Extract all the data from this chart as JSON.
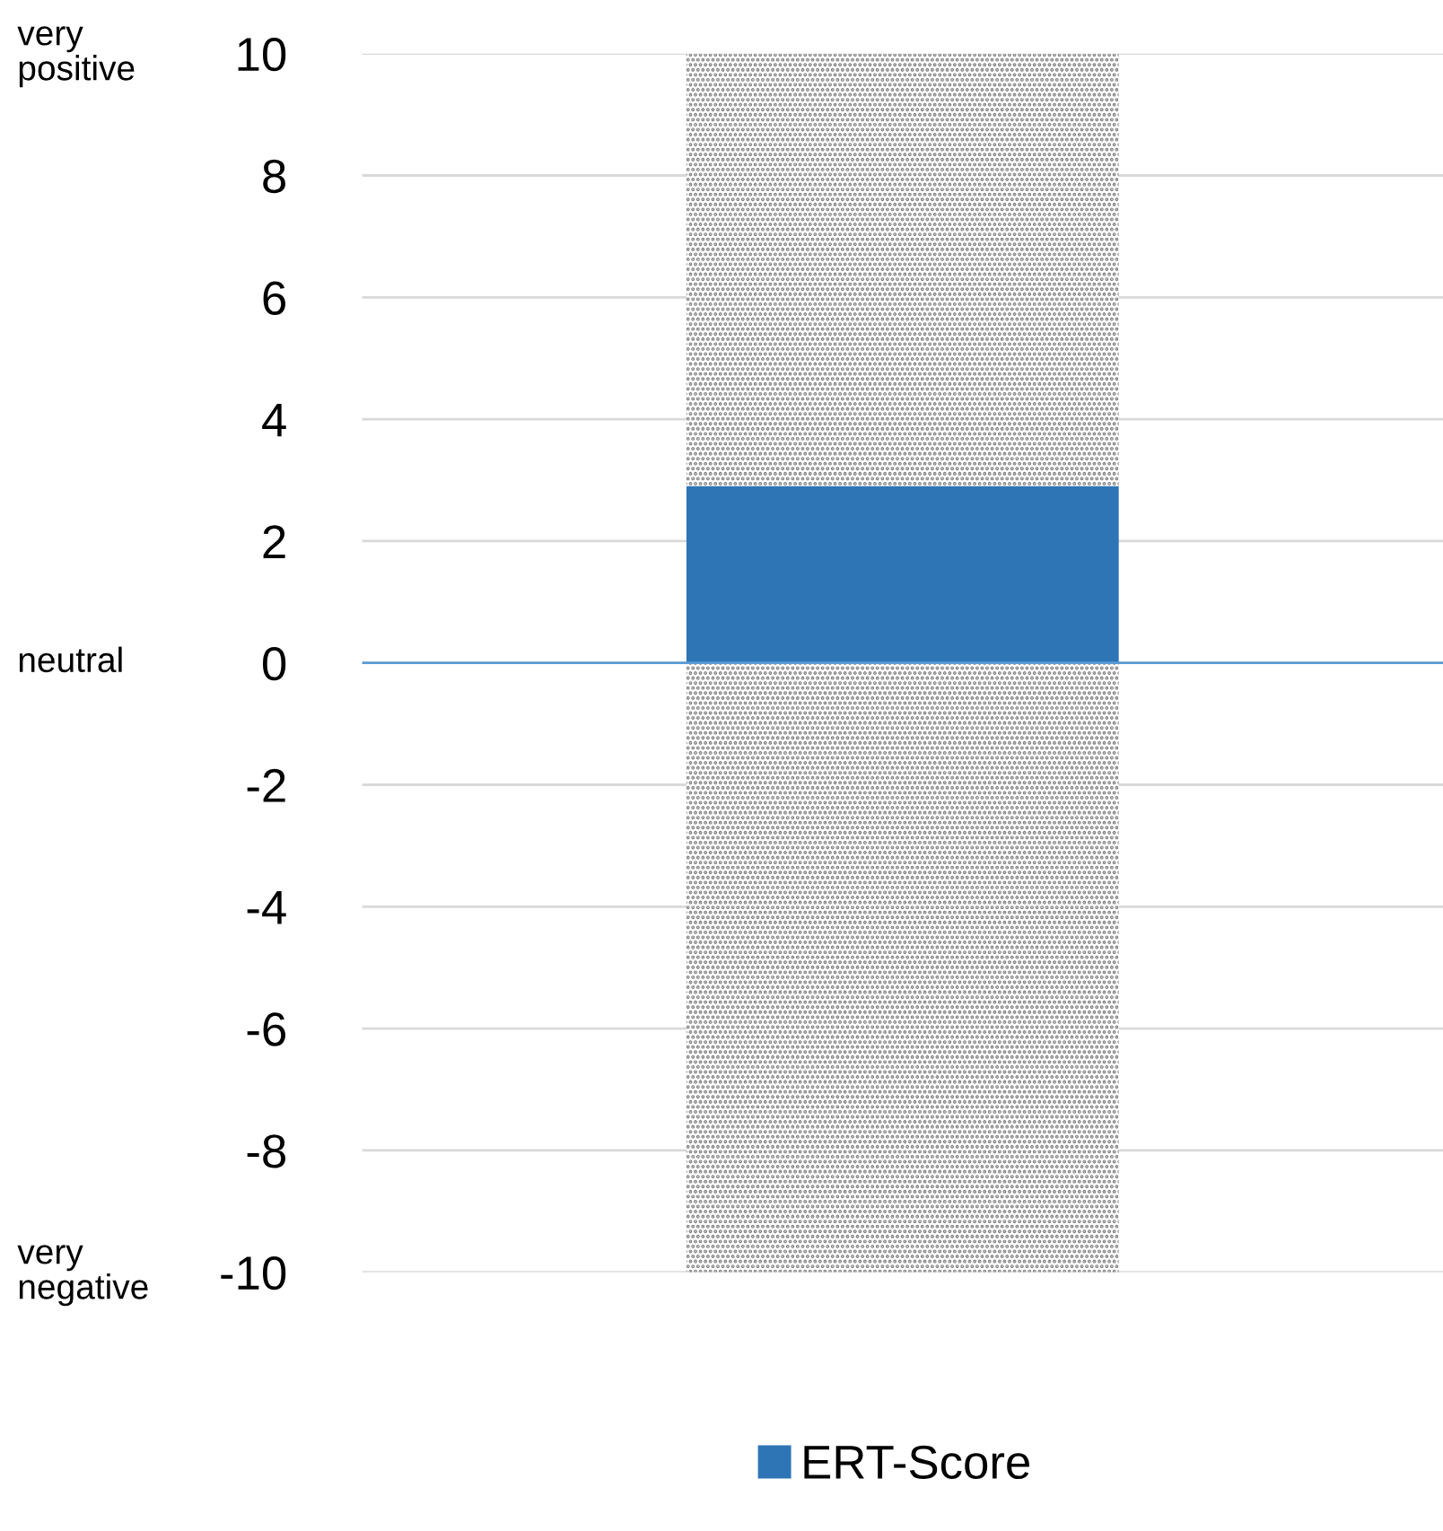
{
  "chart_data": {
    "type": "bar",
    "categories": [
      null
    ],
    "series": [
      {
        "name": "ERT-Score",
        "color": "#2e75b6",
        "values": [
          2.9
        ]
      },
      {
        "color": "#808080",
        "values": [
          7.1
        ]
      },
      {
        "color": "#808080",
        "values": [
          -10
        ]
      }
    ],
    "stacked": true,
    "ref_lines": [
      {
        "axis": "y",
        "value": 0,
        "color": "#5b9bd5"
      }
    ],
    "ylim": [
      -10,
      10
    ],
    "yticks": [
      -10,
      -8,
      -6,
      -4,
      -2,
      0,
      2,
      4,
      6,
      8,
      10
    ],
    "grid": "y",
    "legend": "bottom",
    "annotations": [
      "very\npositive",
      "neutral",
      "very\nnegative"
    ]
  }
}
